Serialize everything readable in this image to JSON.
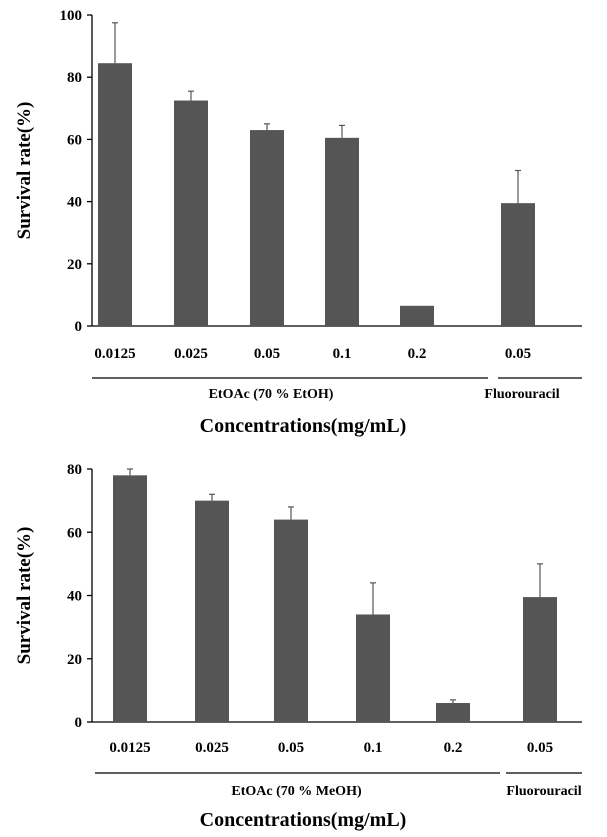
{
  "chart_data": [
    {
      "type": "bar",
      "categories": [
        "0.0125",
        "0.025",
        "0.05",
        "0.1",
        "0.2",
        "0.05"
      ],
      "values": [
        84.5,
        72.5,
        63,
        60.5,
        6.5,
        39.5
      ],
      "errors": [
        13,
        3,
        2,
        4,
        0,
        10.5
      ],
      "ylabel": "Survival rate(%)",
      "xlabel": "Concentrations(mg/mL)",
      "ylim": [
        0,
        100
      ],
      "yticks": [
        "0",
        "20",
        "40",
        "60",
        "80",
        "100"
      ],
      "groups": [
        {
          "label": "EtOAc (70 % EtOH)",
          "span": [
            0,
            4
          ]
        },
        {
          "label": "Fluorouracil",
          "span": [
            5,
            5
          ]
        }
      ],
      "bar_color": "#555555"
    },
    {
      "type": "bar",
      "categories": [
        "0.0125",
        "0.025",
        "0.05",
        "0.1",
        "0.2",
        "0.05"
      ],
      "values": [
        78,
        70,
        64,
        34,
        6,
        39.5
      ],
      "errors": [
        2,
        2,
        4,
        10,
        1,
        10.5
      ],
      "ylabel": "Survival rate(%)",
      "xlabel": "Concentrations(mg/mL)",
      "ylim": [
        0,
        80
      ],
      "yticks": [
        "0",
        "20",
        "40",
        "60",
        "80"
      ],
      "groups": [
        {
          "label": "EtOAc (70 % MeOH)",
          "span": [
            0,
            4
          ]
        },
        {
          "label": "Fluorouracil",
          "span": [
            5,
            5
          ]
        }
      ],
      "bar_color": "#555555"
    }
  ]
}
